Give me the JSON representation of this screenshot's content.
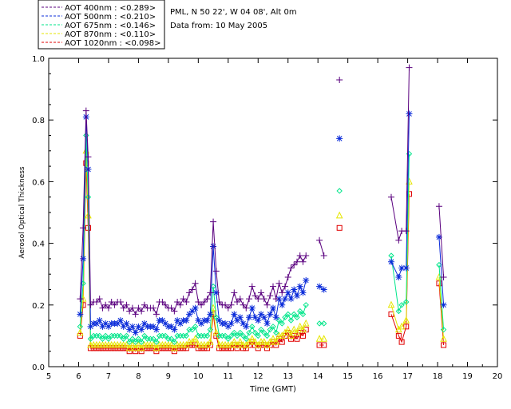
{
  "legend": [
    {
      "label": "AOT  400nm : <0.289>",
      "color": "#5a007f"
    },
    {
      "label": "AOT  500nm : <0.210>",
      "color": "#0a2bd9"
    },
    {
      "label": "AOT  675nm : <0.146>",
      "color": "#00e68a"
    },
    {
      "label": "AOT  870nm : <0.110>",
      "color": "#e6e600"
    },
    {
      "label": "AOT 1020nm : <0.098>",
      "color": "#e00000"
    }
  ],
  "info": {
    "site": "PML, N 50 22', W 04 08', Alt 0m",
    "date": "Data from: 10 May 2005"
  },
  "chart_data": {
    "type": "line",
    "xlabel": "Time (GMT)",
    "ylabel": "Aerosol Optical Thickness",
    "xlim": [
      5,
      20
    ],
    "ylim": [
      0.0,
      1.0
    ],
    "xticks": [
      5,
      6,
      7,
      8,
      9,
      10,
      11,
      12,
      13,
      14,
      15,
      16,
      17,
      18,
      19,
      20
    ],
    "yticks": [
      "0.0",
      "0.2",
      "0.4",
      "0.6",
      "0.8",
      "1.0"
    ],
    "x": [
      6.05,
      6.15,
      6.25,
      6.32,
      6.4,
      6.5,
      6.6,
      6.7,
      6.8,
      6.9,
      7.0,
      7.1,
      7.2,
      7.3,
      7.4,
      7.5,
      7.6,
      7.7,
      7.8,
      7.9,
      8.0,
      8.1,
      8.2,
      8.3,
      8.4,
      8.5,
      8.6,
      8.7,
      8.8,
      8.9,
      9.0,
      9.1,
      9.2,
      9.3,
      9.4,
      9.5,
      9.6,
      9.7,
      9.8,
      9.9,
      10.0,
      10.1,
      10.2,
      10.3,
      10.4,
      10.5,
      10.6,
      10.7,
      10.8,
      10.9,
      11.0,
      11.1,
      11.2,
      11.3,
      11.4,
      11.5,
      11.6,
      11.7,
      11.8,
      11.9,
      12.0,
      12.1,
      12.2,
      12.3,
      12.4,
      12.5,
      12.6,
      12.7,
      12.8,
      12.9,
      13.0,
      13.1,
      13.2,
      13.3,
      13.4,
      13.5,
      13.6,
      14.05,
      14.2,
      14.72,
      16.45,
      16.7,
      16.8,
      16.95,
      17.05,
      18.05,
      18.2
    ],
    "series": [
      {
        "name": "AOT  400nm : <0.289>",
        "marker": "plus",
        "values": [
          0.22,
          0.45,
          0.83,
          0.68,
          0.2,
          0.21,
          0.21,
          0.22,
          0.19,
          0.2,
          0.19,
          0.21,
          0.2,
          0.21,
          0.21,
          0.19,
          0.2,
          0.18,
          0.19,
          0.17,
          0.19,
          0.18,
          0.2,
          0.19,
          0.19,
          0.19,
          0.17,
          0.21,
          0.21,
          0.2,
          0.19,
          0.19,
          0.18,
          0.21,
          0.2,
          0.22,
          0.21,
          0.24,
          0.25,
          0.27,
          0.21,
          0.2,
          0.21,
          0.22,
          0.24,
          0.47,
          0.31,
          0.21,
          0.2,
          0.2,
          0.19,
          0.2,
          0.24,
          0.21,
          0.22,
          0.2,
          0.19,
          0.22,
          0.26,
          0.23,
          0.22,
          0.24,
          0.22,
          0.2,
          0.23,
          0.26,
          0.22,
          0.27,
          0.24,
          0.26,
          0.29,
          0.32,
          0.33,
          0.34,
          0.36,
          0.34,
          0.36,
          0.41,
          0.36,
          0.93,
          0.55,
          0.41,
          0.44,
          0.44,
          0.97,
          0.52,
          0.29
        ]
      },
      {
        "name": "AOT  500nm : <0.210>",
        "marker": "star",
        "values": [
          0.17,
          0.35,
          0.81,
          0.64,
          0.13,
          0.14,
          0.14,
          0.15,
          0.13,
          0.14,
          0.13,
          0.14,
          0.14,
          0.14,
          0.15,
          0.13,
          0.14,
          0.12,
          0.13,
          0.11,
          0.13,
          0.12,
          0.14,
          0.13,
          0.13,
          0.13,
          0.12,
          0.15,
          0.15,
          0.14,
          0.13,
          0.13,
          0.12,
          0.15,
          0.14,
          0.15,
          0.15,
          0.17,
          0.18,
          0.19,
          0.15,
          0.14,
          0.15,
          0.15,
          0.17,
          0.39,
          0.24,
          0.15,
          0.14,
          0.14,
          0.13,
          0.14,
          0.17,
          0.15,
          0.16,
          0.14,
          0.13,
          0.16,
          0.19,
          0.16,
          0.15,
          0.17,
          0.16,
          0.14,
          0.17,
          0.19,
          0.16,
          0.22,
          0.2,
          0.22,
          0.24,
          0.22,
          0.25,
          0.23,
          0.26,
          0.24,
          0.28,
          0.26,
          0.25,
          0.74,
          0.34,
          0.29,
          0.32,
          0.32,
          0.82,
          0.42,
          0.2
        ]
      },
      {
        "name": "AOT  675nm : <0.146>",
        "marker": "diamond",
        "values": [
          0.13,
          0.27,
          0.75,
          0.55,
          0.09,
          0.1,
          0.1,
          0.1,
          0.09,
          0.1,
          0.09,
          0.1,
          0.1,
          0.1,
          0.1,
          0.09,
          0.1,
          0.08,
          0.09,
          0.08,
          0.09,
          0.08,
          0.1,
          0.09,
          0.09,
          0.09,
          0.08,
          0.1,
          0.1,
          0.1,
          0.09,
          0.09,
          0.08,
          0.1,
          0.1,
          0.1,
          0.1,
          0.12,
          0.12,
          0.13,
          0.1,
          0.1,
          0.1,
          0.1,
          0.12,
          0.26,
          0.16,
          0.1,
          0.1,
          0.1,
          0.09,
          0.1,
          0.11,
          0.1,
          0.11,
          0.1,
          0.09,
          0.11,
          0.13,
          0.11,
          0.1,
          0.12,
          0.11,
          0.1,
          0.12,
          0.13,
          0.11,
          0.15,
          0.14,
          0.16,
          0.17,
          0.15,
          0.17,
          0.16,
          0.18,
          0.17,
          0.2,
          0.14,
          0.14,
          0.57,
          0.36,
          0.18,
          0.2,
          0.21,
          0.69,
          0.33,
          0.12
        ]
      },
      {
        "name": "AOT  870nm : <0.110>",
        "marker": "triangle",
        "values": [
          0.11,
          0.22,
          0.7,
          0.49,
          0.07,
          0.07,
          0.07,
          0.07,
          0.07,
          0.07,
          0.07,
          0.07,
          0.07,
          0.07,
          0.07,
          0.07,
          0.07,
          0.06,
          0.07,
          0.06,
          0.07,
          0.06,
          0.07,
          0.07,
          0.07,
          0.07,
          0.06,
          0.07,
          0.07,
          0.07,
          0.07,
          0.07,
          0.06,
          0.07,
          0.07,
          0.07,
          0.07,
          0.08,
          0.08,
          0.09,
          0.07,
          0.07,
          0.07,
          0.07,
          0.08,
          0.19,
          0.11,
          0.07,
          0.07,
          0.07,
          0.07,
          0.07,
          0.08,
          0.07,
          0.08,
          0.07,
          0.07,
          0.08,
          0.09,
          0.08,
          0.07,
          0.08,
          0.08,
          0.07,
          0.08,
          0.09,
          0.08,
          0.1,
          0.1,
          0.11,
          0.12,
          0.1,
          0.12,
          0.11,
          0.13,
          0.12,
          0.14,
          0.09,
          0.09,
          0.49,
          0.2,
          0.12,
          0.13,
          0.15,
          0.6,
          0.29,
          0.09
        ]
      },
      {
        "name": "AOT 1020nm : <0.098>",
        "marker": "square",
        "values": [
          0.1,
          0.2,
          0.66,
          0.45,
          0.06,
          0.06,
          0.06,
          0.06,
          0.06,
          0.06,
          0.06,
          0.06,
          0.06,
          0.06,
          0.06,
          0.06,
          0.06,
          0.05,
          0.06,
          0.05,
          0.06,
          0.05,
          0.06,
          0.06,
          0.06,
          0.06,
          0.05,
          0.06,
          0.06,
          0.06,
          0.06,
          0.06,
          0.05,
          0.06,
          0.06,
          0.06,
          0.06,
          0.07,
          0.07,
          0.07,
          0.06,
          0.06,
          0.06,
          0.06,
          0.07,
          0.17,
          0.1,
          0.06,
          0.06,
          0.06,
          0.06,
          0.06,
          0.07,
          0.06,
          0.07,
          0.06,
          0.06,
          0.07,
          0.08,
          0.07,
          0.06,
          0.07,
          0.07,
          0.06,
          0.07,
          0.08,
          0.07,
          0.09,
          0.08,
          0.1,
          0.11,
          0.09,
          0.1,
          0.09,
          0.11,
          0.1,
          0.12,
          0.07,
          0.07,
          0.45,
          0.17,
          0.1,
          0.08,
          0.13,
          0.56,
          0.27,
          0.07
        ]
      }
    ]
  }
}
